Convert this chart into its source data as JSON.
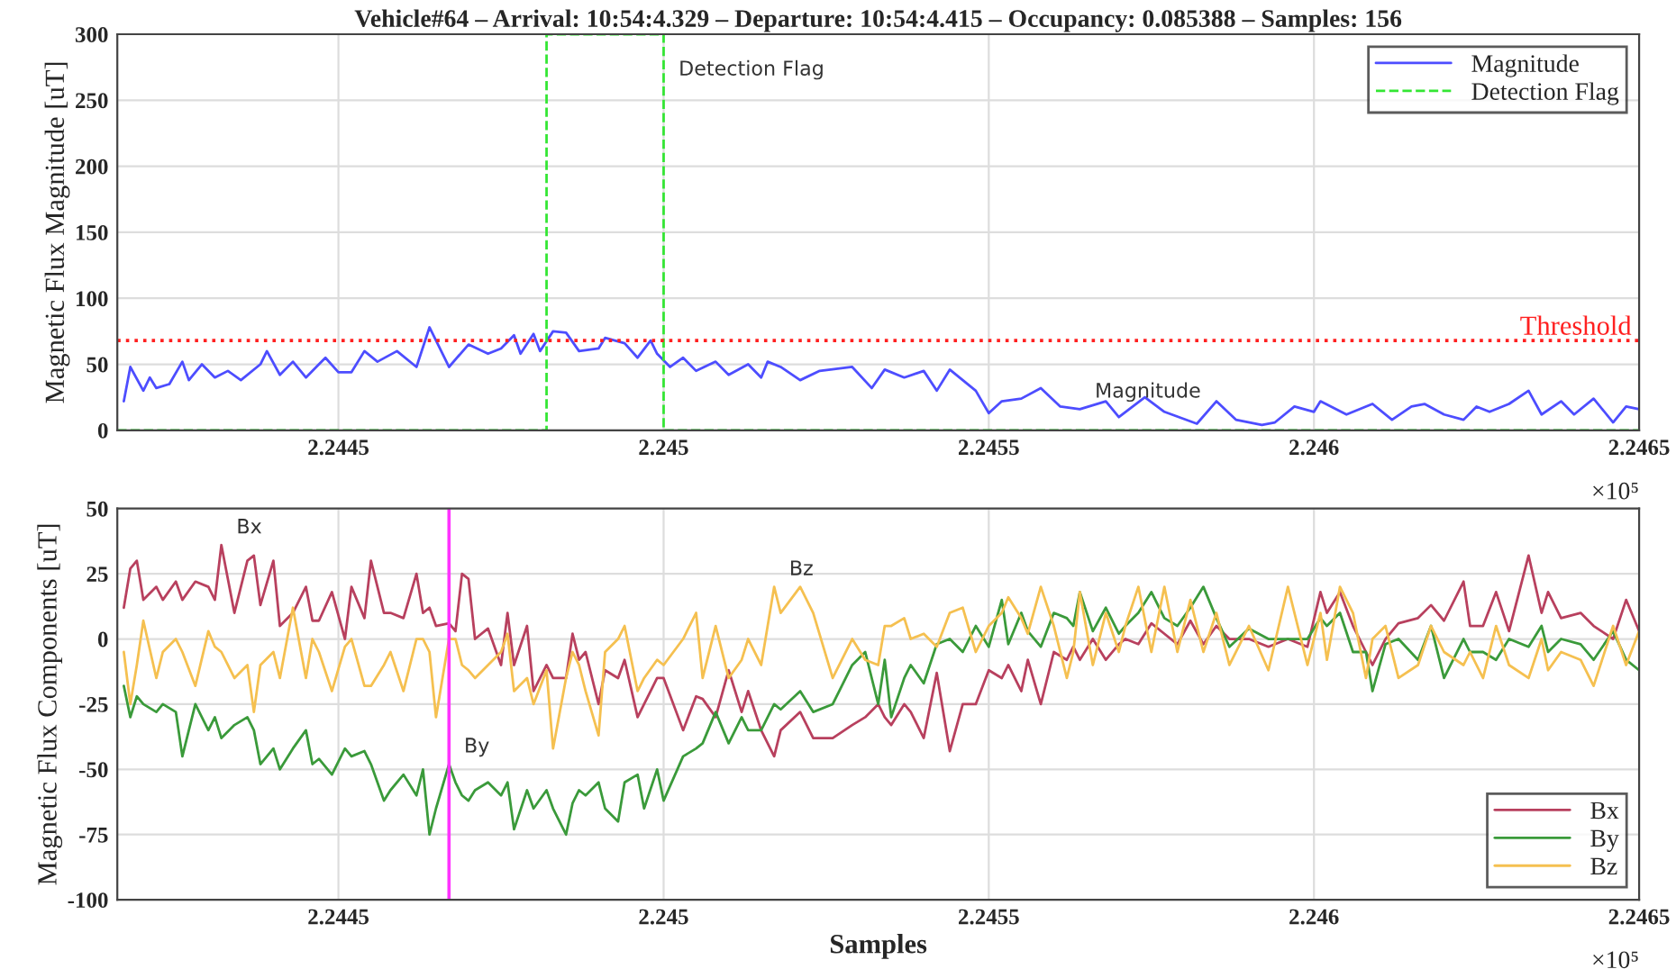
{
  "chart_data": [
    {
      "type": "line",
      "title": "Vehicle#64 – Arrival: 10:54:4.329 – Departure: 10:54:4.415 – Occupancy: 0.085388 – Samples: 156",
      "ylabel": "Magnetic Flux Magnitude [uT]",
      "series": [
        {
          "name": "Magnitude",
          "color": "#4d4dff",
          "line_style": "solid",
          "x": [
            2.24417,
            2.24418,
            2.2442,
            2.24421,
            2.24422,
            2.24424,
            2.24426,
            2.24427,
            2.24429,
            2.24431,
            2.24433,
            2.24435,
            2.24438,
            2.24439,
            2.24441,
            2.24443,
            2.24445,
            2.24447,
            2.24448,
            2.2445,
            2.24452,
            2.24454,
            2.24456,
            2.24459,
            2.24462,
            2.24464,
            2.24467,
            2.2447,
            2.24473,
            2.24475,
            2.24477,
            2.24478,
            2.2448,
            2.24481,
            2.24483,
            2.24485,
            2.24487,
            2.2449,
            2.24491,
            2.24494,
            2.24496,
            2.24498,
            2.24499,
            2.24501,
            2.24503,
            2.24505,
            2.24508,
            2.2451,
            2.24513,
            2.24515,
            2.24516,
            2.24518,
            2.24521,
            2.24524,
            2.24529,
            2.24532,
            2.24534,
            2.24537,
            2.2454,
            2.24542,
            2.24544,
            2.24548,
            2.2455,
            2.24552,
            2.24555,
            2.24558,
            2.24561,
            2.24564,
            2.24568,
            2.2457,
            2.24574,
            2.24577,
            2.24582,
            2.24585,
            2.24588,
            2.24592,
            2.24594,
            2.24597,
            2.246,
            2.24601,
            2.24605,
            2.24609,
            2.24612,
            2.24615,
            2.24617,
            2.2462,
            2.24623,
            2.24625,
            2.24627,
            2.2463,
            2.24633,
            2.24635,
            2.24638,
            2.2464,
            2.24643,
            2.24646,
            2.24648,
            2.2465
          ],
          "values": [
            22,
            48,
            30,
            40,
            32,
            35,
            52,
            38,
            50,
            40,
            45,
            38,
            50,
            60,
            42,
            52,
            40,
            50,
            55,
            44,
            44,
            60,
            52,
            60,
            48,
            78,
            48,
            65,
            58,
            62,
            72,
            58,
            73,
            60,
            75,
            74,
            60,
            62,
            70,
            66,
            55,
            68,
            58,
            48,
            55,
            45,
            52,
            42,
            50,
            40,
            52,
            48,
            38,
            45,
            48,
            32,
            46,
            40,
            45,
            30,
            46,
            30,
            13,
            22,
            24,
            32,
            18,
            16,
            22,
            10,
            25,
            14,
            5,
            22,
            8,
            4,
            6,
            18,
            14,
            22,
            12,
            20,
            8,
            18,
            20,
            12,
            8,
            18,
            14,
            20,
            30,
            12,
            22,
            12,
            24,
            6,
            18,
            16
          ]
        },
        {
          "name": "Detection Flag",
          "color": "#33e633",
          "line_style": "dashed",
          "x": [
            2.24416,
            2.24482,
            2.24482,
            2.245,
            2.245,
            2.2465
          ],
          "values": [
            0,
            0,
            300,
            300,
            0,
            0
          ]
        }
      ],
      "xlim": [
        2.24416,
        2.2465
      ],
      "xticks": [
        2.2445,
        2.245,
        2.2455,
        2.246,
        2.2465
      ],
      "ylim": [
        0,
        300
      ],
      "yticks": [
        0,
        50,
        100,
        150,
        200,
        250,
        300
      ],
      "ref_lines": [
        {
          "axis": "y",
          "value": 68,
          "label": "Threshold",
          "color": "#ff2020",
          "line_style": "dotted"
        }
      ],
      "annotations": [
        {
          "text": "Detection Flag",
          "x": 2.245,
          "y": 260
        },
        {
          "text": "Magnitude",
          "x": 2.24564,
          "y": 16
        },
        "×10⁵"
      ],
      "grid": true,
      "legend": "top right",
      "marker": "none"
    },
    {
      "type": "line",
      "xlabel": "Samples",
      "ylabel": "Magnetic Flux Components [uT]",
      "x": [
        2.24417,
        2.24418,
        2.24419,
        2.2442,
        2.24422,
        2.24423,
        2.24425,
        2.24426,
        2.24428,
        2.2443,
        2.24431,
        2.24432,
        2.24434,
        2.24436,
        2.24437,
        2.24438,
        2.2444,
        2.24441,
        2.24443,
        2.24445,
        2.24446,
        2.24447,
        2.24449,
        2.24451,
        2.24452,
        2.24454,
        2.24455,
        2.24457,
        2.24458,
        2.2446,
        2.24462,
        2.24463,
        2.24464,
        2.24465,
        2.24467,
        2.24468,
        2.24469,
        2.2447,
        2.24471,
        2.24473,
        2.24475,
        2.24476,
        2.24477,
        2.24479,
        2.2448,
        2.24482,
        2.24483,
        2.24485,
        2.24486,
        2.24487,
        2.24488,
        2.2449,
        2.24491,
        2.24493,
        2.24494,
        2.24496,
        2.24497,
        2.24499,
        2.245,
        2.24503,
        2.24505,
        2.24506,
        2.24508,
        2.2451,
        2.24512,
        2.24513,
        2.24515,
        2.24517,
        2.24518,
        2.24521,
        2.24523,
        2.24526,
        2.24529,
        2.24531,
        2.24533,
        2.24534,
        2.24535,
        2.24537,
        2.24538,
        2.2454,
        2.24542,
        2.24544,
        2.24546,
        2.24548,
        2.2455,
        2.24552,
        2.24553,
        2.24555,
        2.24556,
        2.24558,
        2.2456,
        2.24562,
        2.24563,
        2.24564,
        2.24566,
        2.24568,
        2.2457,
        2.24571,
        2.24573,
        2.24575,
        2.24577,
        2.24579,
        2.24581,
        2.24583,
        2.24585,
        2.24587,
        2.2459,
        2.24593,
        2.24596,
        2.24599,
        2.24601,
        2.24602,
        2.24604,
        2.24606,
        2.24608,
        2.24609,
        2.24611,
        2.24613,
        2.24616,
        2.24618,
        2.2462,
        2.24623,
        2.24624,
        2.24626,
        2.24628,
        2.2463,
        2.24633,
        2.24635,
        2.24636,
        2.24638,
        2.24641,
        2.24643,
        2.24646,
        2.24648,
        2.2465
      ],
      "series": [
        {
          "name": "Bx",
          "color": "#b8405e",
          "values": [
            12,
            27,
            30,
            15,
            20,
            15,
            22,
            15,
            22,
            20,
            15,
            36,
            10,
            30,
            32,
            13,
            30,
            5,
            10,
            20,
            7,
            7,
            18,
            0,
            20,
            8,
            30,
            10,
            10,
            8,
            25,
            10,
            12,
            5,
            6,
            3,
            25,
            23,
            0,
            4,
            -10,
            10,
            -10,
            5,
            -20,
            -10,
            -15,
            -15,
            2,
            -8,
            -5,
            -25,
            -12,
            -15,
            -8,
            -30,
            -25,
            -15,
            -15,
            -35,
            -22,
            -23,
            -30,
            -12,
            -28,
            -20,
            -35,
            -45,
            -35,
            -28,
            -38,
            -38,
            -33,
            -30,
            -25,
            -30,
            -33,
            -25,
            -28,
            -38,
            -13,
            -43,
            -25,
            -25,
            -12,
            -15,
            -10,
            -20,
            -8,
            -25,
            -5,
            -8,
            -3,
            -8,
            0,
            -8,
            -2,
            0,
            -2,
            6,
            2,
            -2,
            7,
            -2,
            5,
            0,
            0,
            -3,
            0,
            -3,
            18,
            10,
            18,
            5,
            -5,
            -10,
            0,
            6,
            8,
            13,
            7,
            22,
            5,
            5,
            18,
            3,
            32,
            10,
            18,
            8,
            10,
            5,
            0,
            15,
            3
          ]
        },
        {
          "name": "By",
          "color": "#3a9a3a",
          "values": [
            -18,
            -30,
            -22,
            -25,
            -28,
            -25,
            -28,
            -45,
            -25,
            -35,
            -30,
            -38,
            -33,
            -30,
            -35,
            -48,
            -42,
            -50,
            -42,
            -35,
            -48,
            -46,
            -52,
            -42,
            -45,
            -43,
            -48,
            -62,
            -58,
            -52,
            -60,
            -50,
            -75,
            -65,
            -48,
            -55,
            -60,
            -62,
            -58,
            -55,
            -60,
            -55,
            -73,
            -58,
            -65,
            -58,
            -65,
            -75,
            -63,
            -58,
            -60,
            -55,
            -65,
            -70,
            -55,
            -52,
            -65,
            -50,
            -62,
            -45,
            -42,
            -40,
            -28,
            -40,
            -30,
            -35,
            -35,
            -25,
            -27,
            -20,
            -28,
            -25,
            -10,
            -5,
            -25,
            -8,
            -30,
            -15,
            -10,
            -17,
            -2,
            0,
            -5,
            5,
            -3,
            15,
            -2,
            10,
            3,
            -3,
            10,
            8,
            5,
            18,
            3,
            12,
            2,
            5,
            10,
            18,
            8,
            5,
            12,
            20,
            8,
            -3,
            4,
            0,
            0,
            0,
            8,
            5,
            10,
            -5,
            -5,
            -20,
            -2,
            0,
            -8,
            5,
            -15,
            0,
            -5,
            -5,
            -8,
            0,
            -3,
            5,
            -5,
            0,
            -2,
            -8,
            3,
            -8,
            -12
          ]
        },
        {
          "name": "Bz",
          "color": "#f5c050",
          "values": [
            -5,
            -25,
            -10,
            7,
            -15,
            -5,
            0,
            -5,
            -18,
            3,
            -3,
            -5,
            -15,
            -10,
            -28,
            -10,
            -5,
            -15,
            12,
            -15,
            0,
            -5,
            -20,
            -3,
            0,
            -18,
            -18,
            -10,
            -5,
            -20,
            0,
            0,
            -5,
            -30,
            0,
            0,
            -10,
            -12,
            -15,
            -10,
            -5,
            2,
            -20,
            -15,
            -25,
            -12,
            -42,
            -15,
            -5,
            -10,
            -20,
            -37,
            -5,
            0,
            5,
            -20,
            -15,
            -8,
            -10,
            0,
            10,
            -15,
            5,
            -15,
            -8,
            0,
            -10,
            20,
            10,
            20,
            10,
            -15,
            0,
            -8,
            -10,
            5,
            5,
            8,
            0,
            2,
            -3,
            10,
            12,
            -5,
            5,
            10,
            16,
            8,
            2,
            20,
            5,
            -15,
            -5,
            18,
            -10,
            10,
            -5,
            5,
            20,
            -5,
            20,
            -5,
            15,
            -5,
            10,
            -10,
            5,
            -12,
            20,
            -10,
            10,
            -8,
            20,
            10,
            -15,
            0,
            5,
            -15,
            -10,
            5,
            -5,
            -10,
            -5,
            -15,
            5,
            -10,
            -15,
            0,
            -12,
            -5,
            -8,
            -18,
            5,
            -10,
            3
          ]
        }
      ],
      "xlim": [
        2.24416,
        2.2465
      ],
      "xticks": [
        2.2445,
        2.245,
        2.2455,
        2.246,
        2.2465
      ],
      "ylim": [
        -100,
        50
      ],
      "yticks": [
        -100,
        -75,
        -50,
        -25,
        0,
        25,
        50
      ],
      "ref_lines": [
        {
          "axis": "x",
          "value": 2.24467,
          "color": "#ff33ff",
          "line_style": "solid"
        }
      ],
      "annotations": [
        {
          "text": "Bx",
          "x": 2.24432,
          "y": 36
        },
        {
          "text": "By",
          "x": 2.24467,
          "y": -48
        },
        {
          "text": "Bz",
          "x": 2.24517,
          "y": 20
        },
        "×10⁵"
      ],
      "grid": true,
      "legend": "bottom right",
      "marker": "none"
    }
  ]
}
